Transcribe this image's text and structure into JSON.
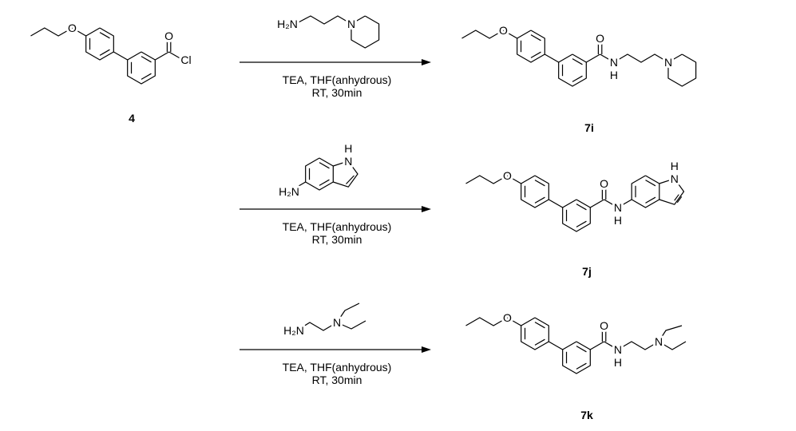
{
  "starting_material": {
    "atom_labels": [
      "O",
      "O",
      "Cl"
    ],
    "label": "4"
  },
  "reactions": [
    {
      "reagent": {
        "atom_labels": [
          "H₂N",
          "N"
        ]
      },
      "conditions": [
        "TEA, THF(anhydrous)",
        "RT, 30min"
      ],
      "product": {
        "atom_labels": [
          "O",
          "O",
          "N",
          "H",
          "N"
        ],
        "label": "7i"
      }
    },
    {
      "reagent": {
        "atom_labels": [
          "H₂N",
          "N",
          "H"
        ]
      },
      "conditions": [
        "TEA, THF(anhydrous)",
        "RT, 30min"
      ],
      "product": {
        "atom_labels": [
          "O",
          "O",
          "N",
          "H",
          "N",
          "H"
        ],
        "label": "7j"
      }
    },
    {
      "reagent": {
        "atom_labels": [
          "H₂N",
          "N"
        ]
      },
      "conditions": [
        "TEA, THF(anhydrous)",
        "RT, 30min"
      ],
      "product": {
        "atom_labels": [
          "O",
          "O",
          "N",
          "H",
          "N"
        ],
        "label": "7k"
      }
    }
  ]
}
